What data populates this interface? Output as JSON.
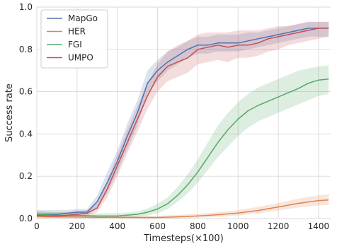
{
  "chart_data": {
    "type": "line",
    "title": "",
    "xlabel": "Timesteps(×100)",
    "ylabel": "Success rate",
    "xlim": [
      0,
      1460
    ],
    "ylim": [
      0,
      1.0
    ],
    "xticks": [
      0,
      200,
      400,
      600,
      800,
      1000,
      1200,
      1400
    ],
    "yticks": [
      0.0,
      0.2,
      0.4,
      0.6,
      0.8,
      1.0
    ],
    "ytick_labels": [
      "0.0",
      "0.2",
      "0.4",
      "0.6",
      "0.8",
      "1.0"
    ],
    "grid": true,
    "legend_position": "top-left",
    "series": [
      {
        "name": "MapGo",
        "color": "#4c72b0",
        "x": [
          0,
          50,
          100,
          150,
          200,
          250,
          300,
          350,
          400,
          450,
          500,
          550,
          600,
          650,
          700,
          750,
          800,
          850,
          900,
          950,
          1000,
          1050,
          1100,
          1150,
          1200,
          1250,
          1300,
          1350,
          1400,
          1450
        ],
        "y": [
          0.02,
          0.02,
          0.02,
          0.025,
          0.03,
          0.03,
          0.08,
          0.17,
          0.27,
          0.39,
          0.5,
          0.64,
          0.7,
          0.74,
          0.77,
          0.8,
          0.82,
          0.82,
          0.83,
          0.83,
          0.83,
          0.84,
          0.85,
          0.86,
          0.87,
          0.88,
          0.89,
          0.9,
          0.9,
          0.9
        ],
        "lower": [
          0.01,
          0.01,
          0.01,
          0.015,
          0.02,
          0.02,
          0.05,
          0.12,
          0.22,
          0.33,
          0.44,
          0.59,
          0.65,
          0.7,
          0.73,
          0.76,
          0.78,
          0.78,
          0.79,
          0.79,
          0.79,
          0.8,
          0.81,
          0.82,
          0.83,
          0.84,
          0.85,
          0.86,
          0.86,
          0.86
        ],
        "upper": [
          0.04,
          0.04,
          0.04,
          0.04,
          0.045,
          0.045,
          0.11,
          0.22,
          0.32,
          0.45,
          0.56,
          0.7,
          0.75,
          0.79,
          0.81,
          0.84,
          0.86,
          0.86,
          0.87,
          0.87,
          0.87,
          0.88,
          0.88,
          0.89,
          0.9,
          0.91,
          0.92,
          0.93,
          0.93,
          0.93
        ]
      },
      {
        "name": "HER",
        "color": "#dd8452",
        "x": [
          0,
          100,
          200,
          300,
          400,
          500,
          600,
          700,
          800,
          900,
          1000,
          1100,
          1200,
          1300,
          1400,
          1450
        ],
        "y": [
          0.01,
          0.008,
          0.007,
          0.006,
          0.006,
          0.005,
          0.005,
          0.008,
          0.012,
          0.018,
          0.026,
          0.038,
          0.055,
          0.072,
          0.085,
          0.088
        ],
        "lower": [
          0.0,
          0.0,
          0.0,
          0.0,
          0.0,
          0.0,
          0.0,
          0.0,
          0.004,
          0.008,
          0.014,
          0.024,
          0.038,
          0.052,
          0.062,
          0.064
        ],
        "upper": [
          0.02,
          0.018,
          0.016,
          0.014,
          0.014,
          0.013,
          0.013,
          0.017,
          0.022,
          0.03,
          0.04,
          0.055,
          0.074,
          0.094,
          0.11,
          0.115
        ]
      },
      {
        "name": "FGI",
        "color": "#55a868",
        "x": [
          0,
          100,
          200,
          300,
          400,
          500,
          550,
          600,
          650,
          700,
          750,
          800,
          850,
          900,
          950,
          1000,
          1050,
          1100,
          1150,
          1200,
          1250,
          1300,
          1350,
          1400,
          1450
        ],
        "y": [
          0.02,
          0.015,
          0.015,
          0.012,
          0.012,
          0.02,
          0.03,
          0.045,
          0.07,
          0.11,
          0.16,
          0.22,
          0.29,
          0.36,
          0.42,
          0.47,
          0.51,
          0.535,
          0.555,
          0.575,
          0.595,
          0.615,
          0.64,
          0.655,
          0.66
        ],
        "lower": [
          0.005,
          0.005,
          0.005,
          0.004,
          0.004,
          0.008,
          0.015,
          0.025,
          0.045,
          0.08,
          0.12,
          0.17,
          0.23,
          0.29,
          0.34,
          0.39,
          0.43,
          0.46,
          0.48,
          0.5,
          0.52,
          0.54,
          0.56,
          0.58,
          0.59
        ],
        "upper": [
          0.035,
          0.03,
          0.028,
          0.025,
          0.025,
          0.033,
          0.047,
          0.07,
          0.1,
          0.15,
          0.21,
          0.28,
          0.36,
          0.44,
          0.5,
          0.55,
          0.59,
          0.62,
          0.64,
          0.66,
          0.68,
          0.7,
          0.71,
          0.72,
          0.725
        ]
      },
      {
        "name": "UMPO",
        "color": "#c44e52",
        "x": [
          0,
          50,
          100,
          150,
          200,
          250,
          300,
          350,
          400,
          450,
          500,
          550,
          600,
          650,
          700,
          750,
          800,
          850,
          900,
          950,
          1000,
          1050,
          1100,
          1150,
          1200,
          1250,
          1300,
          1350,
          1400,
          1450
        ],
        "y": [
          0.015,
          0.012,
          0.012,
          0.015,
          0.02,
          0.025,
          0.05,
          0.14,
          0.25,
          0.36,
          0.47,
          0.58,
          0.67,
          0.72,
          0.74,
          0.76,
          0.8,
          0.81,
          0.82,
          0.81,
          0.82,
          0.82,
          0.83,
          0.85,
          0.86,
          0.87,
          0.88,
          0.89,
          0.9,
          0.9
        ],
        "lower": [
          0.005,
          0.004,
          0.004,
          0.006,
          0.01,
          0.014,
          0.03,
          0.1,
          0.2,
          0.31,
          0.41,
          0.52,
          0.6,
          0.65,
          0.67,
          0.69,
          0.73,
          0.74,
          0.75,
          0.74,
          0.76,
          0.76,
          0.77,
          0.79,
          0.8,
          0.82,
          0.83,
          0.84,
          0.85,
          0.86
        ],
        "upper": [
          0.03,
          0.028,
          0.028,
          0.03,
          0.035,
          0.04,
          0.08,
          0.18,
          0.3,
          0.42,
          0.53,
          0.64,
          0.73,
          0.79,
          0.82,
          0.84,
          0.87,
          0.88,
          0.88,
          0.88,
          0.89,
          0.89,
          0.89,
          0.9,
          0.91,
          0.91,
          0.92,
          0.93,
          0.93,
          0.93
        ]
      }
    ]
  }
}
